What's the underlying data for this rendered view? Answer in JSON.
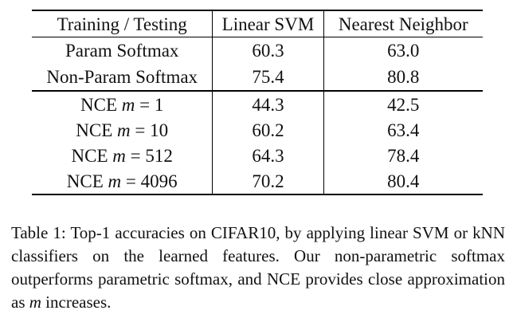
{
  "table": {
    "headers": [
      "Training / Testing",
      "Linear SVM",
      "Nearest Neighbor"
    ],
    "rows": [
      {
        "method": "Param Softmax",
        "linear_svm": "60.3",
        "nearest_neighbor": "63.0",
        "nn_bold": false
      },
      {
        "method": "Non-Param Softmax",
        "linear_svm": "75.4",
        "nearest_neighbor": "80.8",
        "nn_bold": true
      },
      {
        "method_prefix": "NCE",
        "method_var": "m",
        "method_value": "1",
        "linear_svm": "44.3",
        "nearest_neighbor": "42.5",
        "nn_bold": false
      },
      {
        "method_prefix": "NCE",
        "method_var": "m",
        "method_value": "10",
        "linear_svm": "60.2",
        "nearest_neighbor": "63.4",
        "nn_bold": false
      },
      {
        "method_prefix": "NCE",
        "method_var": "m",
        "method_value": "512",
        "linear_svm": "64.3",
        "nearest_neighbor": "78.4",
        "nn_bold": false
      },
      {
        "method_prefix": "NCE",
        "method_var": "m",
        "method_value": "4096",
        "linear_svm": "70.2",
        "nearest_neighbor": "80.4",
        "nn_bold": true
      }
    ]
  },
  "caption": {
    "label": "Table 1:",
    "text_before_var": "Top-1 accuracies on CIFAR10, by applying linear SVM or kNN classifiers on the learned features.  Our non-parametric softmax outperforms parametric softmax, and NCE provides close approximation as",
    "var": "m",
    "text_after_var": "increases."
  }
}
